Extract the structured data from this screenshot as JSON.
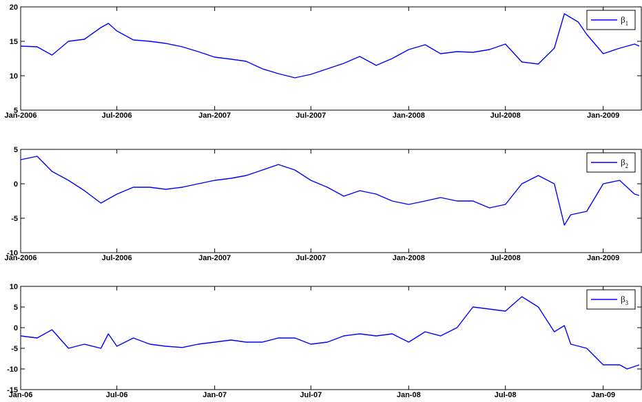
{
  "chart_data": [
    {
      "type": "line",
      "xlim": [
        "2006-01-01",
        "2009-03-15"
      ],
      "ylim": [
        5,
        20
      ],
      "yticks": [
        5,
        10,
        15,
        20
      ],
      "xticks": [
        "2006-01-01",
        "2006-07-01",
        "2007-01-01",
        "2007-07-01",
        "2008-01-01",
        "2008-07-01",
        "2009-01-01"
      ],
      "xticklabels": [
        "Jan-2006",
        "Jul-2006",
        "Jan-2007",
        "Jul-2007",
        "Jan-2008",
        "Jul-2008",
        "Jan-2009"
      ],
      "legend": {
        "symbol": "β",
        "subscript": "1",
        "position": "top-right"
      },
      "color": "#0000ff",
      "series": [
        {
          "x": [
            "2006-01-01",
            "2006-02-01",
            "2006-03-01",
            "2006-04-01",
            "2006-05-01",
            "2006-06-01",
            "2006-06-15",
            "2006-07-01",
            "2006-08-01",
            "2006-09-01",
            "2006-10-01",
            "2006-11-01",
            "2006-12-01",
            "2007-01-01",
            "2007-02-01",
            "2007-03-01",
            "2007-04-01",
            "2007-05-01",
            "2007-06-01",
            "2007-07-01",
            "2007-08-01",
            "2007-09-01",
            "2007-10-01",
            "2007-11-01",
            "2007-12-01",
            "2008-01-01",
            "2008-02-01",
            "2008-03-01",
            "2008-04-01",
            "2008-05-01",
            "2008-06-01",
            "2008-07-01",
            "2008-08-01",
            "2008-09-01",
            "2008-10-01",
            "2008-10-20",
            "2008-11-15",
            "2008-12-01",
            "2009-01-01",
            "2009-02-01",
            "2009-03-01",
            "2009-03-10"
          ],
          "y": [
            14.3,
            14.2,
            13.0,
            15.0,
            15.3,
            17.0,
            17.6,
            16.5,
            15.2,
            15.0,
            14.7,
            14.2,
            13.5,
            12.7,
            12.4,
            12.1,
            11.0,
            10.3,
            9.7,
            10.2,
            11.0,
            11.8,
            12.8,
            11.5,
            12.5,
            13.8,
            14.5,
            13.2,
            13.5,
            13.4,
            13.8,
            14.6,
            12.0,
            11.7,
            14.0,
            19.0,
            17.8,
            16.0,
            13.2,
            14.0,
            14.6,
            14.3
          ]
        }
      ]
    },
    {
      "type": "line",
      "xlim": [
        "2006-01-01",
        "2009-03-15"
      ],
      "ylim": [
        -10,
        5
      ],
      "yticks": [
        -10,
        -5,
        0,
        5
      ],
      "xticks": [
        "2006-01-01",
        "2006-07-01",
        "2007-01-01",
        "2007-07-01",
        "2008-01-01",
        "2008-07-01",
        "2009-01-01"
      ],
      "xticklabels": [
        "Jan-2006",
        "Jul-2006",
        "Jan-2007",
        "Jul-2007",
        "Jan-2008",
        "Jul-2008",
        "Jan-2009"
      ],
      "legend": {
        "symbol": "β",
        "subscript": "2",
        "position": "top-right"
      },
      "color": "#0000ff",
      "series": [
        {
          "x": [
            "2006-01-01",
            "2006-02-01",
            "2006-03-01",
            "2006-04-01",
            "2006-05-01",
            "2006-06-01",
            "2006-07-01",
            "2006-08-01",
            "2006-09-01",
            "2006-10-01",
            "2006-11-01",
            "2006-12-01",
            "2007-01-01",
            "2007-02-01",
            "2007-03-01",
            "2007-04-01",
            "2007-05-01",
            "2007-06-01",
            "2007-07-01",
            "2007-08-01",
            "2007-09-01",
            "2007-10-01",
            "2007-11-01",
            "2007-12-01",
            "2008-01-01",
            "2008-02-01",
            "2008-03-01",
            "2008-04-01",
            "2008-05-01",
            "2008-06-01",
            "2008-07-01",
            "2008-08-01",
            "2008-09-01",
            "2008-10-01",
            "2008-10-20",
            "2008-11-01",
            "2008-12-01",
            "2009-01-01",
            "2009-02-01",
            "2009-03-01",
            "2009-03-10"
          ],
          "y": [
            3.5,
            4.0,
            1.8,
            0.5,
            -1.0,
            -2.8,
            -1.5,
            -0.5,
            -0.5,
            -0.8,
            -0.5,
            0.0,
            0.5,
            0.8,
            1.2,
            2.0,
            2.8,
            2.0,
            0.5,
            -0.5,
            -1.8,
            -1.0,
            -1.5,
            -2.5,
            -3.0,
            -2.5,
            -2.0,
            -2.5,
            -2.5,
            -3.5,
            -3.0,
            0.0,
            1.2,
            0.0,
            -6.0,
            -4.5,
            -4.0,
            0.0,
            0.5,
            -1.5,
            -1.7
          ]
        }
      ]
    },
    {
      "type": "line",
      "xlim": [
        "2006-01-01",
        "2009-03-15"
      ],
      "ylim": [
        -15,
        10
      ],
      "yticks": [
        -15,
        -10,
        -5,
        0,
        5,
        10
      ],
      "xticks": [
        "2006-01-01",
        "2006-07-01",
        "2007-01-01",
        "2007-07-01",
        "2008-01-01",
        "2008-07-01",
        "2009-01-01"
      ],
      "xticklabels": [
        "Jan-06",
        "Jul-06",
        "Jan-07",
        "Jul-07",
        "Jan-08",
        "Jul-08",
        "Jan-09"
      ],
      "legend": {
        "symbol": "β",
        "subscript": "3",
        "position": "top-right"
      },
      "color": "#0000ff",
      "series": [
        {
          "x": [
            "2006-01-01",
            "2006-02-01",
            "2006-03-01",
            "2006-04-01",
            "2006-05-01",
            "2006-06-01",
            "2006-06-15",
            "2006-07-01",
            "2006-08-01",
            "2006-09-01",
            "2006-10-01",
            "2006-11-01",
            "2006-12-01",
            "2007-01-01",
            "2007-02-01",
            "2007-03-01",
            "2007-04-01",
            "2007-05-01",
            "2007-06-01",
            "2007-07-01",
            "2007-08-01",
            "2007-09-01",
            "2007-10-01",
            "2007-11-01",
            "2007-12-01",
            "2008-01-01",
            "2008-02-01",
            "2008-03-01",
            "2008-04-01",
            "2008-05-01",
            "2008-06-01",
            "2008-07-01",
            "2008-08-01",
            "2008-09-01",
            "2008-10-01",
            "2008-10-20",
            "2008-11-01",
            "2008-12-01",
            "2009-01-01",
            "2009-02-01",
            "2009-02-15",
            "2009-03-10"
          ],
          "y": [
            -2.0,
            -2.5,
            -0.5,
            -5.0,
            -4.0,
            -5.0,
            -1.5,
            -4.5,
            -2.5,
            -4.0,
            -4.5,
            -4.8,
            -4.0,
            -3.5,
            -3.0,
            -3.5,
            -3.5,
            -2.5,
            -2.5,
            -4.0,
            -3.5,
            -2.0,
            -1.5,
            -2.0,
            -1.5,
            -3.5,
            -1.0,
            -2.0,
            0.0,
            5.0,
            4.5,
            4.0,
            7.5,
            5.0,
            -1.0,
            0.5,
            -4.0,
            -5.0,
            -9.0,
            -9.0,
            -10.0,
            -9.0
          ]
        }
      ]
    }
  ]
}
